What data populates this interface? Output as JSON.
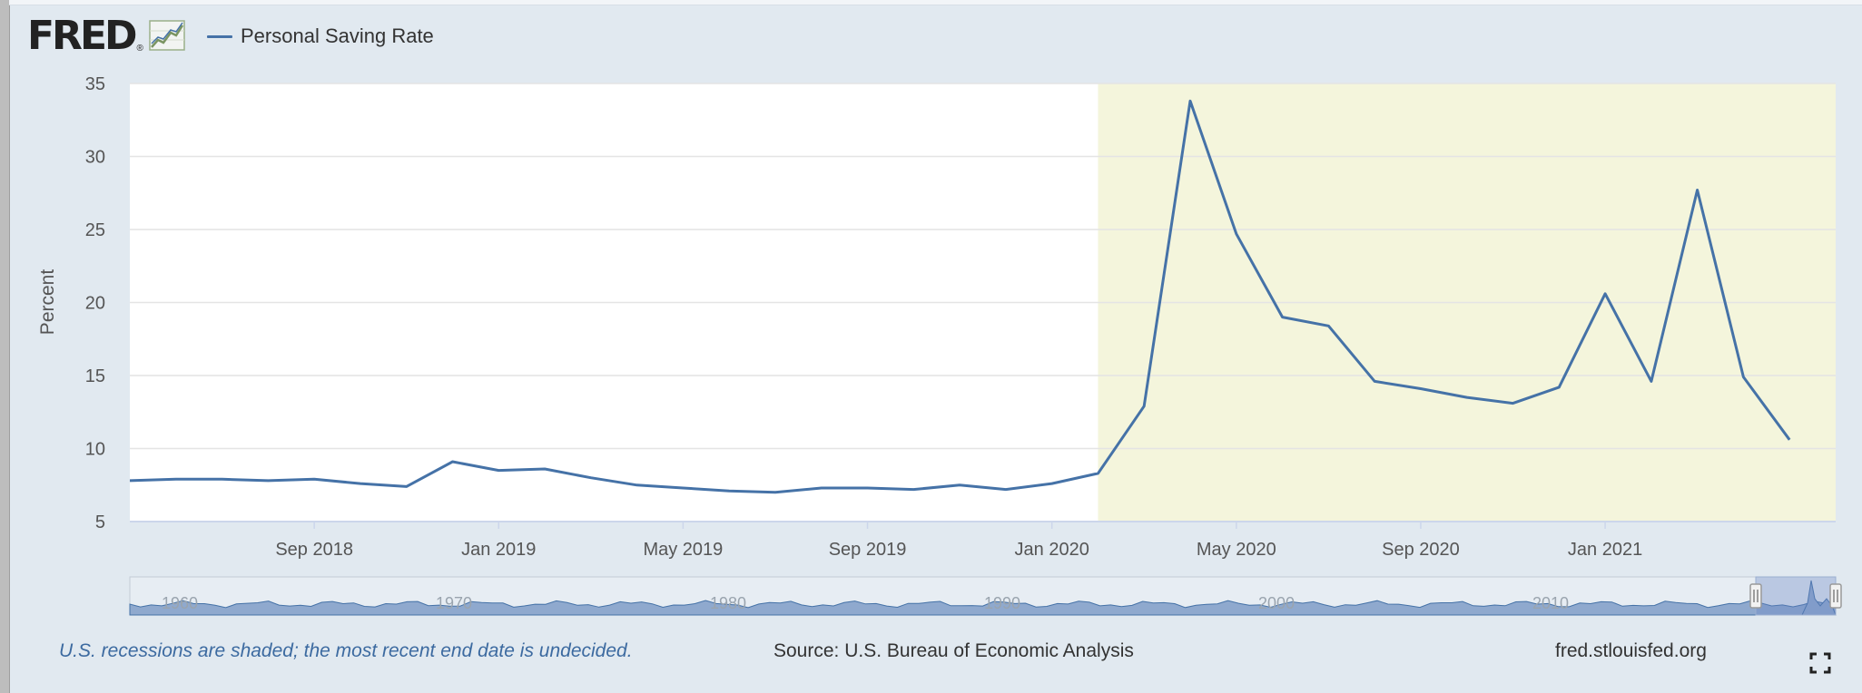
{
  "header": {
    "logo_text": "FRED",
    "logo_mark": "®",
    "legend_label": "Personal Saving Rate"
  },
  "colors": {
    "series": "#4572a7",
    "recession": "#f4f5dc",
    "background": "#e1e9f0",
    "navigator_fill": "#8fa9ce"
  },
  "chart_data": {
    "type": "line",
    "title": "",
    "xlabel": "",
    "ylabel": "Percent",
    "ylim": [
      5,
      35
    ],
    "yticks": [
      5,
      10,
      15,
      20,
      25,
      30,
      35
    ],
    "xlim": [
      "2018-05",
      "2021-06"
    ],
    "xticks": [
      {
        "label": "Sep 2018",
        "date": "2018-09"
      },
      {
        "label": "Jan 2019",
        "date": "2019-01"
      },
      {
        "label": "May 2019",
        "date": "2019-05"
      },
      {
        "label": "Sep 2019",
        "date": "2019-09"
      },
      {
        "label": "Jan 2020",
        "date": "2020-01"
      },
      {
        "label": "May 2020",
        "date": "2020-05"
      },
      {
        "label": "Sep 2020",
        "date": "2020-09"
      },
      {
        "label": "Jan 2021",
        "date": "2021-01"
      }
    ],
    "grid": true,
    "legend_position": "top-left",
    "recession_band": {
      "start": "2020-02",
      "end": "2021-06"
    },
    "series": [
      {
        "name": "Personal Saving Rate",
        "x": [
          "2018-05",
          "2018-06",
          "2018-07",
          "2018-08",
          "2018-09",
          "2018-10",
          "2018-11",
          "2018-12",
          "2019-01",
          "2019-02",
          "2019-03",
          "2019-04",
          "2019-05",
          "2019-06",
          "2019-07",
          "2019-08",
          "2019-09",
          "2019-10",
          "2019-11",
          "2019-12",
          "2020-01",
          "2020-02",
          "2020-03",
          "2020-04",
          "2020-05",
          "2020-06",
          "2020-07",
          "2020-08",
          "2020-09",
          "2020-10",
          "2020-11",
          "2020-12",
          "2021-01",
          "2021-02",
          "2021-03",
          "2021-04",
          "2021-05"
        ],
        "values": [
          7.8,
          7.9,
          7.9,
          7.8,
          7.9,
          7.6,
          7.4,
          9.1,
          8.5,
          8.6,
          8.0,
          7.5,
          7.3,
          7.1,
          7.0,
          7.3,
          7.3,
          7.2,
          7.5,
          7.2,
          7.6,
          8.3,
          12.9,
          33.8,
          24.7,
          19.0,
          18.4,
          14.6,
          14.1,
          13.5,
          13.1,
          14.2,
          20.6,
          14.6,
          27.7,
          14.9,
          10.6
        ]
      }
    ],
    "navigator": {
      "year_labels": [
        "1960",
        "1970",
        "1980",
        "1990",
        "2000",
        "2010"
      ]
    }
  },
  "footer": {
    "note": "U.S. recessions are shaded; the most recent end date is undecided.",
    "source": "Source: U.S. Bureau of Economic Analysis",
    "site": "fred.stlouisfed.org"
  }
}
